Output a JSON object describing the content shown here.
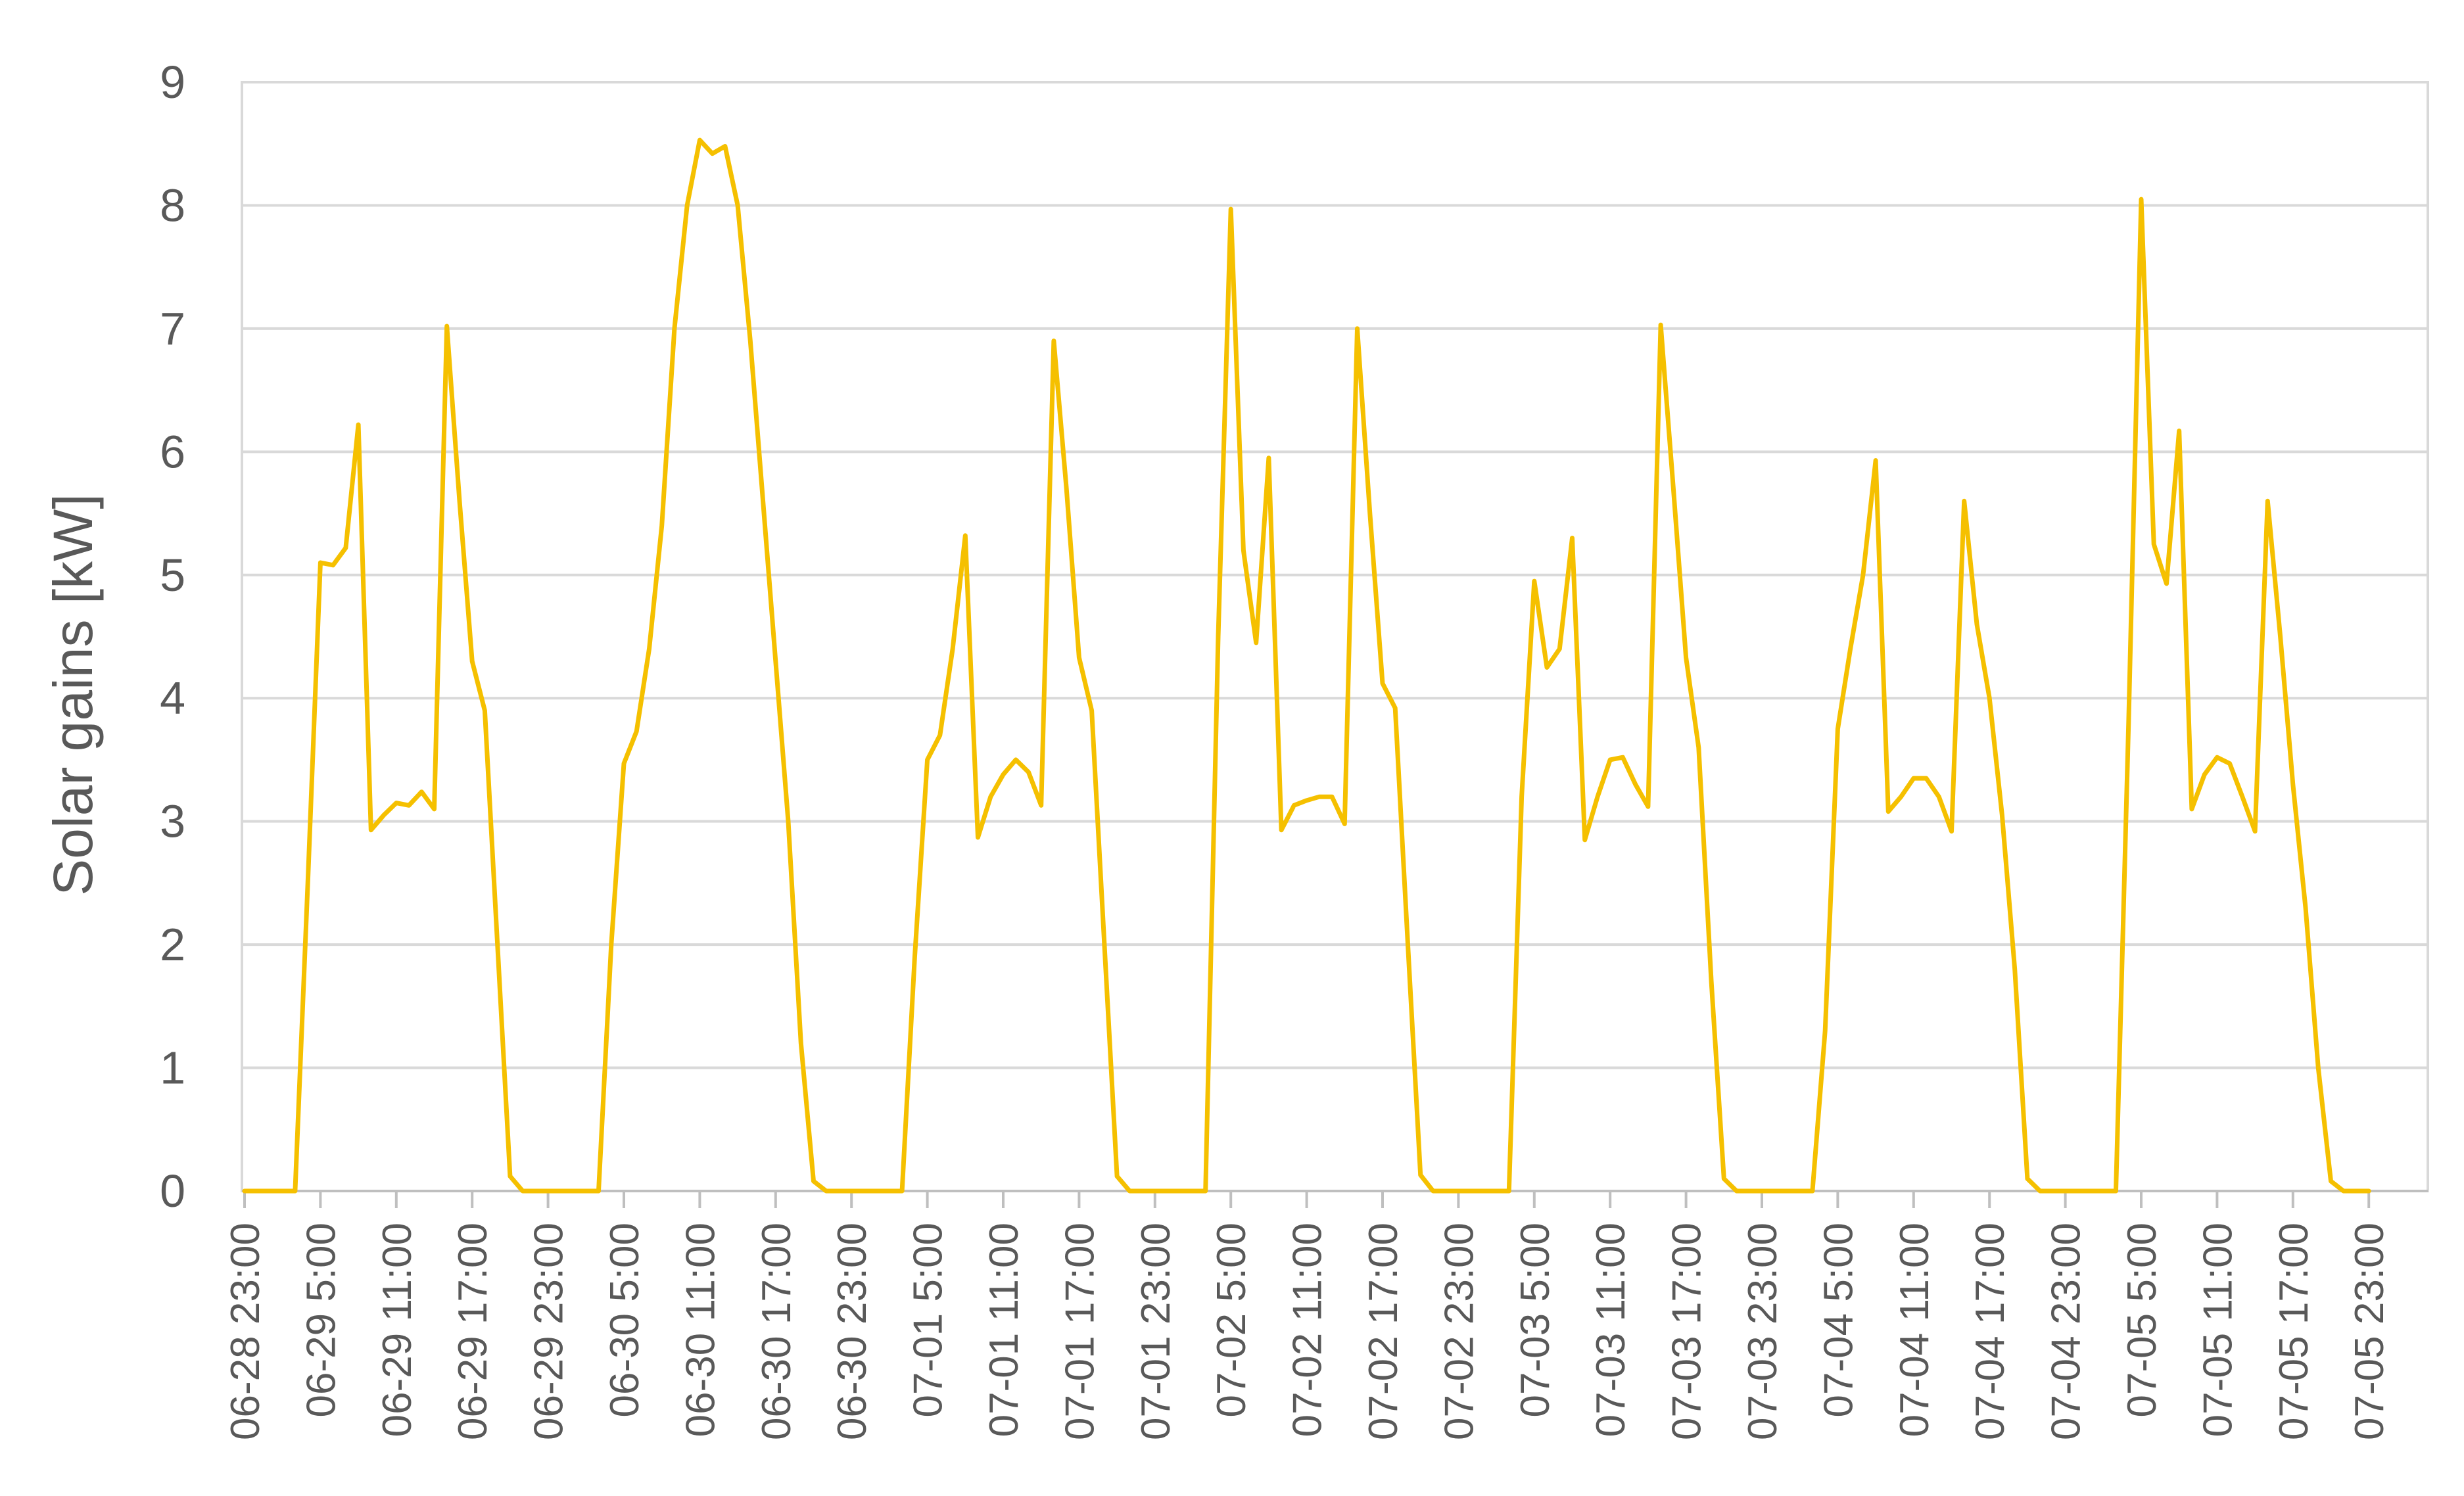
{
  "chart_data": {
    "type": "line",
    "title": "",
    "xlabel": "",
    "ylabel": "Solar gains [kW]",
    "ylim": [
      0,
      9
    ],
    "yticks": [
      0,
      1,
      2,
      3,
      4,
      5,
      6,
      7,
      8,
      9
    ],
    "grid": true,
    "legend": "none",
    "x_tick_labels": [
      "06-28 23:00",
      "06-29 5:00",
      "06-29 11:00",
      "06-29 17:00",
      "06-29 23:00",
      "06-30 5:00",
      "06-30 11:00",
      "06-30 17:00",
      "06-30 23:00",
      "07-01 5:00",
      "07-01 11:00",
      "07-01 17:00",
      "07-01 23:00",
      "07-02 5:00",
      "07-02 11:00",
      "07-02 17:00",
      "07-02 23:00",
      "07-03 5:00",
      "07-03 11:00",
      "07-03 17:00",
      "07-03 23:00",
      "07-04 5:00",
      "07-04 11:00",
      "07-04 17:00",
      "07-04 23:00",
      "07-05 5:00",
      "07-05 11:00",
      "07-05 17:00",
      "07-05 23:00"
    ],
    "series": [
      {
        "color": "#f5c000",
        "points": [
          [
            "06-28 23:00",
            0
          ],
          [
            "06-29 2:00",
            0
          ],
          [
            "06-29 3:00",
            0
          ],
          [
            "06-29 4:00",
            2.5
          ],
          [
            "06-29 5:00",
            5.1
          ],
          [
            "06-29 6:00",
            5.08
          ],
          [
            "06-29 7:00",
            5.22
          ],
          [
            "06-29 8:00",
            6.22
          ],
          [
            "06-29 9:00",
            2.93
          ],
          [
            "06-29 10:00",
            3.05
          ],
          [
            "06-29 11:00",
            3.15
          ],
          [
            "06-29 12:00",
            3.13
          ],
          [
            "06-29 13:00",
            3.24
          ],
          [
            "06-29 14:00",
            3.1
          ],
          [
            "06-29 15:00",
            7.02
          ],
          [
            "06-29 16:00",
            5.6
          ],
          [
            "06-29 17:00",
            4.3
          ],
          [
            "06-29 18:00",
            3.9
          ],
          [
            "06-29 19:00",
            2.0
          ],
          [
            "06-29 20:00",
            0.12
          ],
          [
            "06-29 21:00",
            0
          ],
          [
            "06-30 3:00",
            0
          ],
          [
            "06-30 4:00",
            2.0
          ],
          [
            "06-30 5:00",
            3.47
          ],
          [
            "06-30 6:00",
            3.73
          ],
          [
            "06-30 7:00",
            4.4
          ],
          [
            "06-30 8:00",
            5.4
          ],
          [
            "06-30 9:00",
            7.0
          ],
          [
            "06-30 10:00",
            8.0
          ],
          [
            "06-30 11:00",
            8.53
          ],
          [
            "06-30 12:00",
            8.42
          ],
          [
            "06-30 13:00",
            8.48
          ],
          [
            "06-30 14:00",
            8.0
          ],
          [
            "06-30 15:00",
            6.9
          ],
          [
            "06-30 16:00",
            5.6
          ],
          [
            "06-30 17:00",
            4.3
          ],
          [
            "06-30 18:00",
            3.0
          ],
          [
            "06-30 19:00",
            1.2
          ],
          [
            "06-30 20:00",
            0.08
          ],
          [
            "06-30 21:00",
            0
          ],
          [
            "07-01 3:00",
            0
          ],
          [
            "07-01 4:00",
            1.9
          ],
          [
            "07-01 5:00",
            3.5
          ],
          [
            "07-01 6:00",
            3.7
          ],
          [
            "07-01 7:00",
            4.4
          ],
          [
            "07-01 8:00",
            5.32
          ],
          [
            "07-01 9:00",
            2.87
          ],
          [
            "07-01 10:00",
            3.2
          ],
          [
            "07-01 11:00",
            3.38
          ],
          [
            "07-01 12:00",
            3.5
          ],
          [
            "07-01 13:00",
            3.4
          ],
          [
            "07-01 14:00",
            3.13
          ],
          [
            "07-01 15:00",
            6.9
          ],
          [
            "07-01 16:00",
            5.7
          ],
          [
            "07-01 17:00",
            4.33
          ],
          [
            "07-01 18:00",
            3.9
          ],
          [
            "07-01 19:00",
            2.0
          ],
          [
            "07-01 20:00",
            0.12
          ],
          [
            "07-01 21:00",
            0
          ],
          [
            "07-02 3:00",
            0
          ],
          [
            "07-02 4:00",
            4.5
          ],
          [
            "07-02 5:00",
            7.97
          ],
          [
            "07-02 6:00",
            5.2
          ],
          [
            "07-02 7:00",
            4.45
          ],
          [
            "07-02 8:00",
            5.95
          ],
          [
            "07-02 9:00",
            2.93
          ],
          [
            "07-02 10:00",
            3.13
          ],
          [
            "07-02 11:00",
            3.17
          ],
          [
            "07-02 12:00",
            3.2
          ],
          [
            "07-02 13:00",
            3.2
          ],
          [
            "07-02 14:00",
            2.98
          ],
          [
            "07-02 15:00",
            7.0
          ],
          [
            "07-02 16:00",
            5.5
          ],
          [
            "07-02 17:00",
            4.12
          ],
          [
            "07-02 18:00",
            3.92
          ],
          [
            "07-02 19:00",
            2.0
          ],
          [
            "07-02 20:00",
            0.13
          ],
          [
            "07-02 21:00",
            0
          ],
          [
            "07-03 3:00",
            0
          ],
          [
            "07-03 4:00",
            3.2
          ],
          [
            "07-03 5:00",
            4.95
          ],
          [
            "07-03 6:00",
            4.25
          ],
          [
            "07-03 7:00",
            4.4
          ],
          [
            "07-03 8:00",
            5.3
          ],
          [
            "07-03 9:00",
            2.85
          ],
          [
            "07-03 10:00",
            3.2
          ],
          [
            "07-03 11:00",
            3.5
          ],
          [
            "07-03 12:00",
            3.52
          ],
          [
            "07-03 13:00",
            3.3
          ],
          [
            "07-03 14:00",
            3.12
          ],
          [
            "07-03 15:00",
            7.03
          ],
          [
            "07-03 16:00",
            5.7
          ],
          [
            "07-03 17:00",
            4.33
          ],
          [
            "07-03 18:00",
            3.6
          ],
          [
            "07-03 19:00",
            1.7
          ],
          [
            "07-03 20:00",
            0.1
          ],
          [
            "07-03 21:00",
            0
          ],
          [
            "07-04 3:00",
            0
          ],
          [
            "07-04 4:00",
            1.3
          ],
          [
            "07-04 5:00",
            3.75
          ],
          [
            "07-04 6:00",
            4.4
          ],
          [
            "07-04 7:00",
            5.0
          ],
          [
            "07-04 8:00",
            5.93
          ],
          [
            "07-04 9:00",
            3.08
          ],
          [
            "07-04 10:00",
            3.2
          ],
          [
            "07-04 11:00",
            3.35
          ],
          [
            "07-04 12:00",
            3.35
          ],
          [
            "07-04 13:00",
            3.2
          ],
          [
            "07-04 14:00",
            2.92
          ],
          [
            "07-04 15:00",
            5.6
          ],
          [
            "07-04 16:00",
            4.6
          ],
          [
            "07-04 17:00",
            4.0
          ],
          [
            "07-04 18:00",
            3.05
          ],
          [
            "07-04 19:00",
            1.8
          ],
          [
            "07-04 20:00",
            0.1
          ],
          [
            "07-04 21:00",
            0
          ],
          [
            "07-05 3:00",
            0
          ],
          [
            "07-05 4:00",
            3.8
          ],
          [
            "07-05 5:00",
            8.05
          ],
          [
            "07-05 6:00",
            5.25
          ],
          [
            "07-05 7:00",
            4.93
          ],
          [
            "07-05 8:00",
            6.17
          ],
          [
            "07-05 9:00",
            3.1
          ],
          [
            "07-05 10:00",
            3.38
          ],
          [
            "07-05 11:00",
            3.52
          ],
          [
            "07-05 12:00",
            3.47
          ],
          [
            "07-05 13:00",
            3.2
          ],
          [
            "07-05 14:00",
            2.92
          ],
          [
            "07-05 15:00",
            5.6
          ],
          [
            "07-05 16:00",
            4.5
          ],
          [
            "07-05 17:00",
            3.3
          ],
          [
            "07-05 18:00",
            2.3
          ],
          [
            "07-05 19:00",
            1.0
          ],
          [
            "07-05 20:00",
            0.08
          ],
          [
            "07-05 21:00",
            0
          ],
          [
            "07-05 23:00",
            0
          ]
        ]
      }
    ]
  }
}
